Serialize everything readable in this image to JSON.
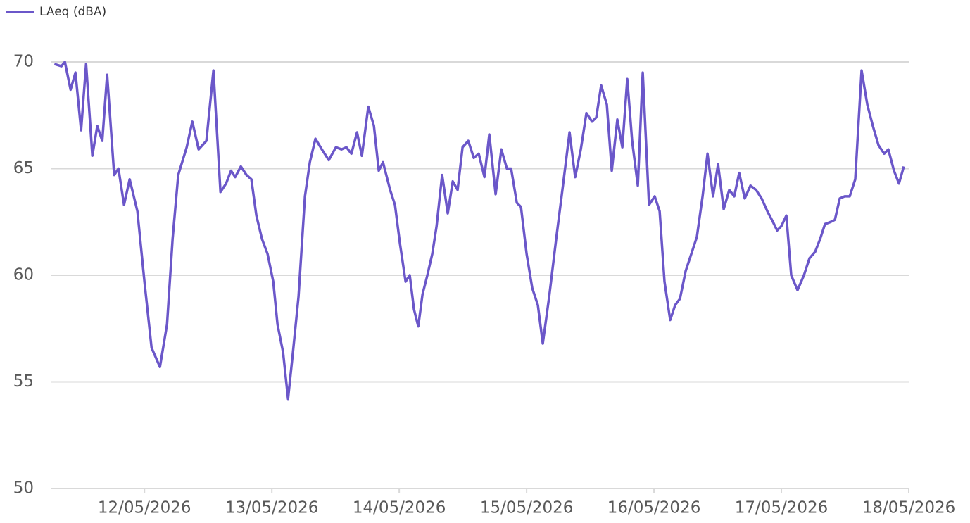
{
  "chart_data": {
    "type": "line",
    "series": [
      {
        "name": "LAeq (dBA)",
        "color": "#6b57c9",
        "x": [
          "2026-05-11T07:02",
          "2026-05-11T08:21",
          "2026-05-11T09:01",
          "2026-05-11T10:05",
          "2026-05-11T11:00",
          "2026-05-11T12:04",
          "2026-05-11T13:00",
          "2026-05-11T14:11",
          "2026-05-11T15:07",
          "2026-05-11T16:03",
          "2026-05-11T16:58",
          "2026-05-11T18:18",
          "2026-05-11T19:06",
          "2026-05-11T20:09",
          "2026-05-11T21:13",
          "2026-05-11T22:40",
          "2026-05-12T00:00",
          "2026-05-12T01:20",
          "2026-05-12T02:55",
          "2026-05-12T04:15",
          "2026-05-12T05:18",
          "2026-05-12T06:22",
          "2026-05-12T07:57",
          "2026-05-12T09:01",
          "2026-05-12T10:13",
          "2026-05-12T11:40",
          "2026-05-12T13:00",
          "2026-05-12T14:19",
          "2026-05-12T15:23",
          "2026-05-12T16:19",
          "2026-05-12T17:06",
          "2026-05-12T18:10",
          "2026-05-12T19:14",
          "2026-05-12T20:09",
          "2026-05-12T21:05",
          "2026-05-12T22:09",
          "2026-05-12T23:12",
          "2026-05-13T00:16",
          "2026-05-13T01:04",
          "2026-05-13T02:07",
          "2026-05-13T03:03",
          "2026-05-13T03:59",
          "2026-05-13T05:02",
          "2026-05-13T06:14",
          "2026-05-13T07:10",
          "2026-05-13T08:13",
          "2026-05-13T09:25",
          "2026-05-13T10:44",
          "2026-05-13T12:04",
          "2026-05-13T13:08",
          "2026-05-13T14:03",
          "2026-05-13T14:59",
          "2026-05-13T16:03",
          "2026-05-13T16:58",
          "2026-05-13T18:10",
          "2026-05-13T19:14",
          "2026-05-13T20:09",
          "2026-05-13T20:57",
          "2026-05-13T22:17",
          "2026-05-13T23:12",
          "2026-05-14T00:08",
          "2026-05-14T01:12",
          "2026-05-14T01:59",
          "2026-05-14T02:47",
          "2026-05-14T03:35",
          "2026-05-14T04:23",
          "2026-05-14T05:18",
          "2026-05-14T06:14",
          "2026-05-14T07:02",
          "2026-05-14T08:05",
          "2026-05-14T09:09",
          "2026-05-14T10:05",
          "2026-05-14T11:00",
          "2026-05-14T11:56",
          "2026-05-14T13:00",
          "2026-05-14T14:03",
          "2026-05-14T14:59",
          "2026-05-14T16:03",
          "2026-05-14T16:58",
          "2026-05-14T18:10",
          "2026-05-14T19:14",
          "2026-05-14T20:17",
          "2026-05-14T21:05",
          "2026-05-14T22:09",
          "2026-05-14T22:56",
          "2026-05-15T00:00",
          "2026-05-15T01:04",
          "2026-05-15T02:07",
          "2026-05-15T03:03",
          "2026-05-15T04:15",
          "2026-05-15T05:34",
          "2026-05-15T06:54",
          "2026-05-15T08:05",
          "2026-05-15T09:09",
          "2026-05-15T10:13",
          "2026-05-15T11:16",
          "2026-05-15T12:20",
          "2026-05-15T13:08",
          "2026-05-15T14:03",
          "2026-05-15T15:07",
          "2026-05-15T16:03",
          "2026-05-15T17:06",
          "2026-05-15T18:02",
          "2026-05-15T18:58",
          "2026-05-15T19:53",
          "2026-05-15T20:57",
          "2026-05-15T21:53",
          "2026-05-15T23:04",
          "2026-05-16T00:08",
          "2026-05-16T01:04",
          "2026-05-16T01:59",
          "2026-05-16T03:03",
          "2026-05-16T03:59",
          "2026-05-16T04:54",
          "2026-05-16T05:58",
          "2026-05-16T07:02",
          "2026-05-16T08:05",
          "2026-05-16T09:09",
          "2026-05-16T10:05",
          "2026-05-16T11:08",
          "2026-05-16T12:04",
          "2026-05-16T13:08",
          "2026-05-16T14:11",
          "2026-05-16T15:07",
          "2026-05-16T16:03",
          "2026-05-16T17:06",
          "2026-05-16T18:10",
          "2026-05-16T19:14",
          "2026-05-16T20:17",
          "2026-05-16T21:21",
          "2026-05-16T22:25",
          "2026-05-16T23:12",
          "2026-05-17T00:00",
          "2026-05-17T00:56",
          "2026-05-17T01:51",
          "2026-05-17T03:03",
          "2026-05-17T04:15",
          "2026-05-17T05:18",
          "2026-05-17T06:22",
          "2026-05-17T07:18",
          "2026-05-17T08:13",
          "2026-05-17T09:17",
          "2026-05-17T10:05",
          "2026-05-17T11:00",
          "2026-05-17T11:56",
          "2026-05-17T12:52",
          "2026-05-17T13:55",
          "2026-05-17T15:07",
          "2026-05-17T16:11",
          "2026-05-17T17:14",
          "2026-05-17T18:18",
          "2026-05-17T19:22",
          "2026-05-17T20:09",
          "2026-05-17T21:13",
          "2026-05-17T22:09",
          "2026-05-17T23:04"
        ],
        "values": [
          69.9,
          69.8,
          70.0,
          68.7,
          69.5,
          66.8,
          69.9,
          65.6,
          67.0,
          66.3,
          69.4,
          64.7,
          65.0,
          63.3,
          64.5,
          63.0,
          59.7,
          56.6,
          55.7,
          57.7,
          61.7,
          64.7,
          66.0,
          67.2,
          65.9,
          66.3,
          69.6,
          63.9,
          64.3,
          64.9,
          64.6,
          65.1,
          64.7,
          64.5,
          62.8,
          61.7,
          61.0,
          59.7,
          57.7,
          56.4,
          54.2,
          56.4,
          59.0,
          63.7,
          65.3,
          66.4,
          65.9,
          65.4,
          66.0,
          65.9,
          66.0,
          65.7,
          66.7,
          65.6,
          67.9,
          67.0,
          64.9,
          65.3,
          64.0,
          63.3,
          61.5,
          59.7,
          60.0,
          58.4,
          57.6,
          59.1,
          60.0,
          61.0,
          62.3,
          64.7,
          62.9,
          64.4,
          64.0,
          66.0,
          66.3,
          65.5,
          65.7,
          64.6,
          66.6,
          63.8,
          65.9,
          65.0,
          65.0,
          63.4,
          63.2,
          61.0,
          59.4,
          58.6,
          56.8,
          59.0,
          61.7,
          64.3,
          66.7,
          64.6,
          65.9,
          67.6,
          67.2,
          67.4,
          68.9,
          68.0,
          64.9,
          67.3,
          66.0,
          69.2,
          66.3,
          64.2,
          69.5,
          63.3,
          63.7,
          63.0,
          59.7,
          57.9,
          58.6,
          58.9,
          60.2,
          61.0,
          61.8,
          63.7,
          65.7,
          63.7,
          65.2,
          63.1,
          64.0,
          63.7,
          64.8,
          63.6,
          64.2,
          64.0,
          63.6,
          63.0,
          62.5,
          62.1,
          62.3,
          62.8,
          60.0,
          59.3,
          60.0,
          60.8,
          61.1,
          61.7,
          62.4,
          62.5,
          62.6,
          63.6,
          63.7,
          63.7,
          64.5,
          69.6,
          68.0,
          67.0,
          66.1,
          65.7,
          65.9,
          64.9,
          64.3,
          65.1
        ]
      }
    ],
    "xlim": [
      "2026-05-11T06:20",
      "2026-05-18T00:00"
    ],
    "xticks": [
      {
        "value": "2026-05-12T00:00",
        "label": "12/05/2026"
      },
      {
        "value": "2026-05-13T00:00",
        "label": "13/05/2026"
      },
      {
        "value": "2026-05-14T00:00",
        "label": "14/05/2026"
      },
      {
        "value": "2026-05-15T00:00",
        "label": "15/05/2026"
      },
      {
        "value": "2026-05-16T00:00",
        "label": "16/05/2026"
      },
      {
        "value": "2026-05-17T00:00",
        "label": "17/05/2026"
      },
      {
        "value": "2026-05-18T00:00",
        "label": "18/05/2026"
      }
    ],
    "ylim": [
      50,
      70
    ],
    "yticks": [
      50,
      55,
      60,
      65,
      70
    ],
    "grid": true,
    "legend": "top-left"
  }
}
